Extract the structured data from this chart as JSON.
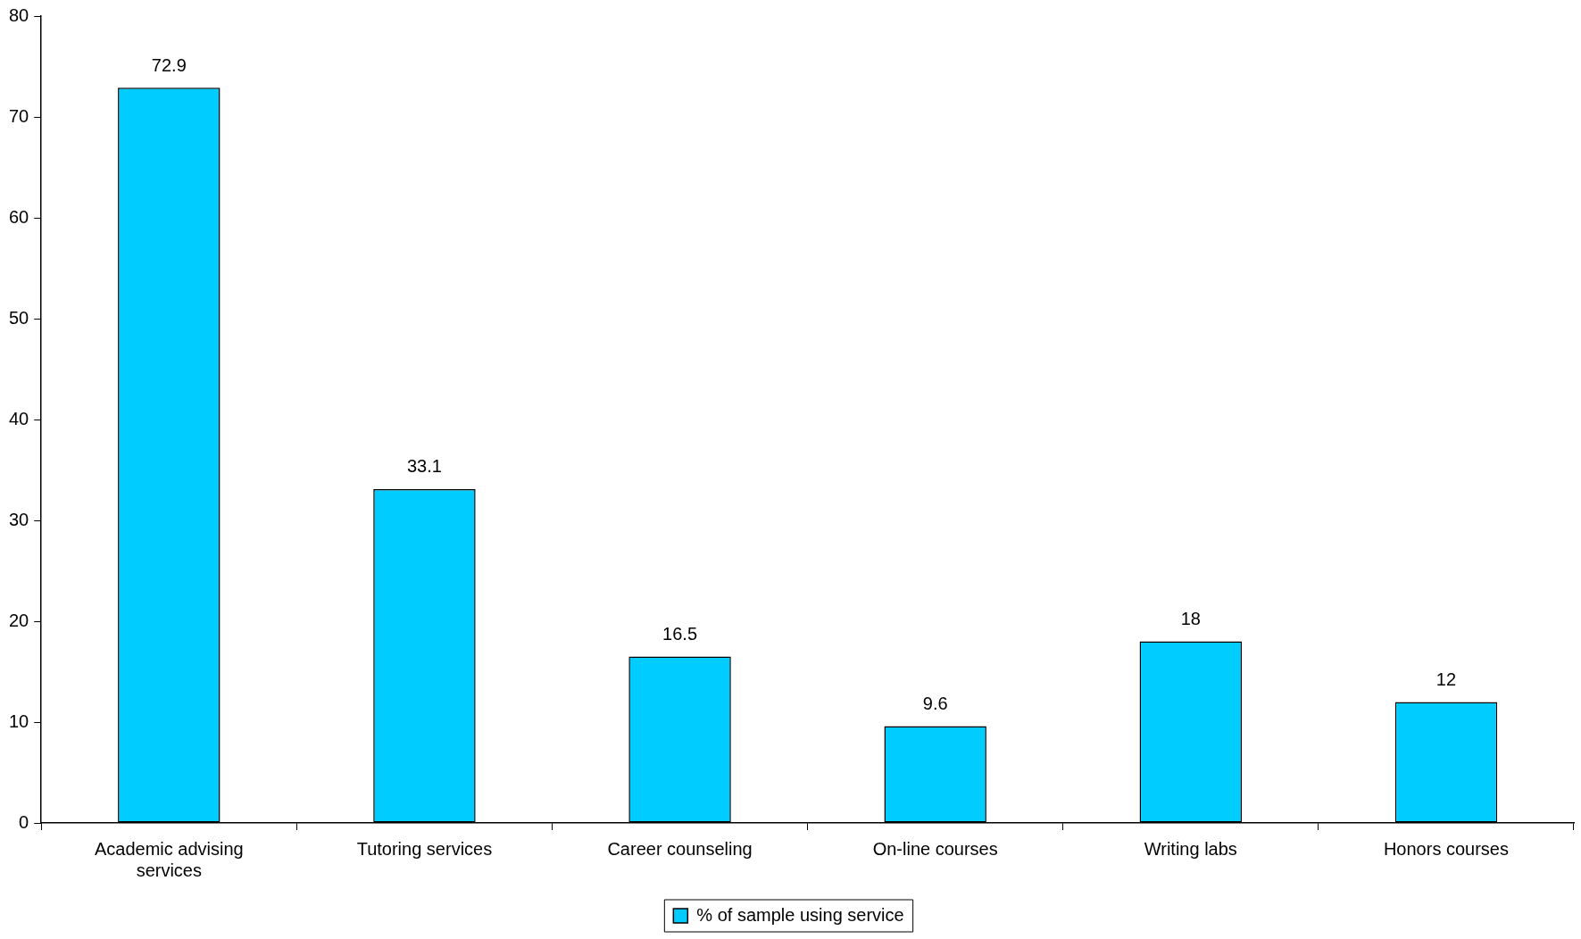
{
  "chart_data": {
    "type": "bar",
    "categories": [
      "Academic advising services",
      "Tutoring services",
      "Career counseling",
      "On-line courses",
      "Writing labs",
      "Honors courses"
    ],
    "series": [
      {
        "name": "% of sample using service",
        "color": "#00ccff",
        "values": [
          72.9,
          33.1,
          16.5,
          9.6,
          18,
          12
        ]
      }
    ],
    "ylim": [
      0,
      80
    ],
    "yticks": [
      0,
      10,
      20,
      30,
      40,
      50,
      60,
      70,
      80
    ],
    "data_labels": true,
    "grid": false,
    "legend": "bottom"
  }
}
